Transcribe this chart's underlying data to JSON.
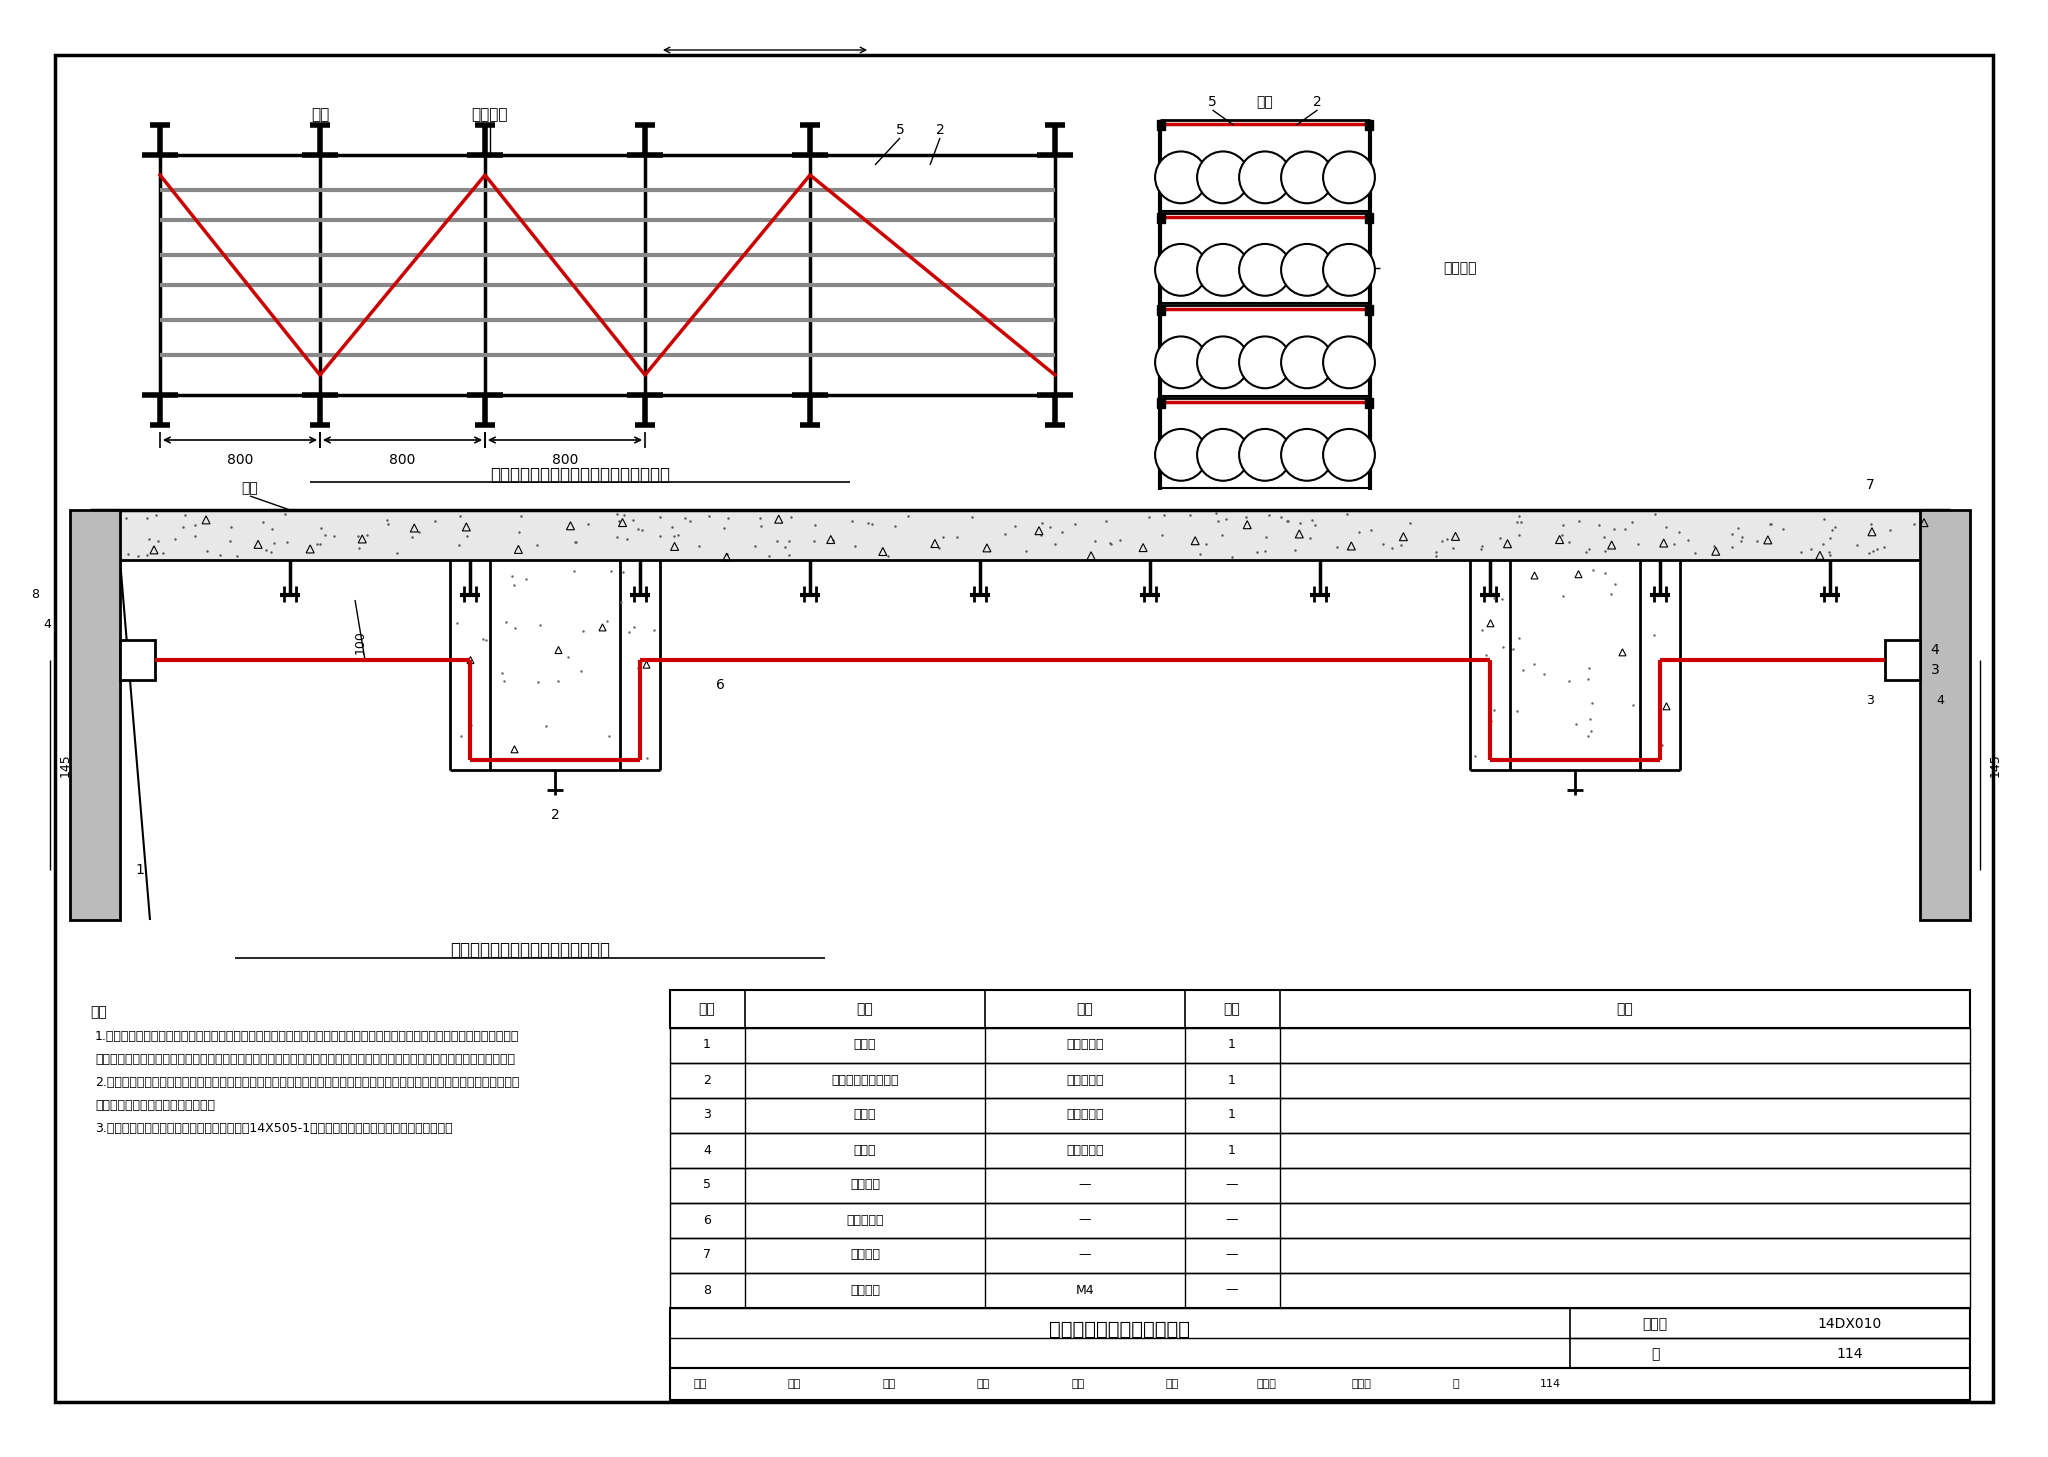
{
  "title": "缆式线型感温探测器安装图",
  "fig_number": "14DX010",
  "page": "114",
  "bg_color": "#ffffff",
  "top_diagram_title": "缆式线型感温探测器在电缆支架上安装图",
  "bottom_diagram_title": "缆式线型感温探测器在楼板下安装图",
  "cable_color": "#cc0000",
  "table_headers": [
    "序号",
    "名称",
    "规格",
    "数量",
    "备注"
  ],
  "table_rows": [
    [
      "1",
      "探测器",
      "见设计选型",
      "1",
      ""
    ],
    [
      "2",
      "缆式线型感温探测器",
      "见设计选型",
      "1",
      ""
    ],
    [
      "3",
      "终端盒",
      "见设计选型",
      "1",
      ""
    ],
    [
      "4",
      "接线盒",
      "见设计选型",
      "1",
      ""
    ],
    [
      "5",
      "固定卡具",
      "—",
      "—",
      ""
    ],
    [
      "6",
      "不锈钢支架",
      "—",
      "—",
      ""
    ],
    [
      "7",
      "膨胀螺栓",
      "—",
      "—",
      ""
    ],
    [
      "8",
      "膨胀螺栓",
      "M4",
      "—",
      ""
    ]
  ],
  "note_lines": [
    "注：",
    "1.缆式定温探测器适用于下列场所或部位：电缆隧道、电缆竖井、电缆夹层、电缆桥架等；配电装置、开关设备、变压器等；各",
    "种皮带输送装置；控制室、计算机室的闷顶内、地板下及重要设施隐蔽处等；其他环境恶劣不适合点型探测器安装的危险场所。",
    "2.缆式感温探测器有两种安装方式：直接接触安装方式和空间安装方式。其中电缆桥架上的缆式探测器选用定温型产品，空间探",
    "测用模式探测器选用差定温型产品。",
    "3.缆式线型感温探测器在其他场所的应用可见14X505-1《（火灾自动报警系统设计规范）图示》。"
  ],
  "sig_labels": [
    "审核",
    "孙兰",
    "校对",
    "前厦",
    "石叉",
    "设计",
    "陈建华",
    "综述外",
    "页",
    "114"
  ]
}
